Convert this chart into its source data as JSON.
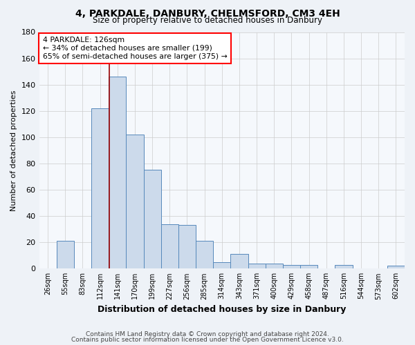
{
  "title": "4, PARKDALE, DANBURY, CHELMSFORD, CM3 4EH",
  "subtitle": "Size of property relative to detached houses in Danbury",
  "xlabel": "Distribution of detached houses by size in Danbury",
  "ylabel": "Number of detached properties",
  "bar_color": "#ccdaeb",
  "bar_edge_color": "#5588bb",
  "categories": [
    "26sqm",
    "55sqm",
    "83sqm",
    "112sqm",
    "141sqm",
    "170sqm",
    "199sqm",
    "227sqm",
    "256sqm",
    "285sqm",
    "314sqm",
    "343sqm",
    "371sqm",
    "400sqm",
    "429sqm",
    "458sqm",
    "487sqm",
    "516sqm",
    "544sqm",
    "573sqm",
    "602sqm"
  ],
  "values": [
    0,
    21,
    0,
    122,
    146,
    102,
    75,
    34,
    33,
    21,
    5,
    11,
    4,
    4,
    3,
    3,
    0,
    3,
    0,
    0,
    2
  ],
  "ylim": [
    0,
    180
  ],
  "yticks": [
    0,
    20,
    40,
    60,
    80,
    100,
    120,
    140,
    160,
    180
  ],
  "annotation_line1": "4 PARKDALE: 126sqm",
  "annotation_line2": "← 34% of detached houses are smaller (199)",
  "annotation_line3": "65% of semi-detached houses are larger (375) →",
  "red_line_color": "#990000",
  "footer1": "Contains HM Land Registry data © Crown copyright and database right 2024.",
  "footer2": "Contains public sector information licensed under the Open Government Licence v3.0.",
  "background_color": "#eef2f7",
  "plot_bg_color": "#f5f8fc"
}
